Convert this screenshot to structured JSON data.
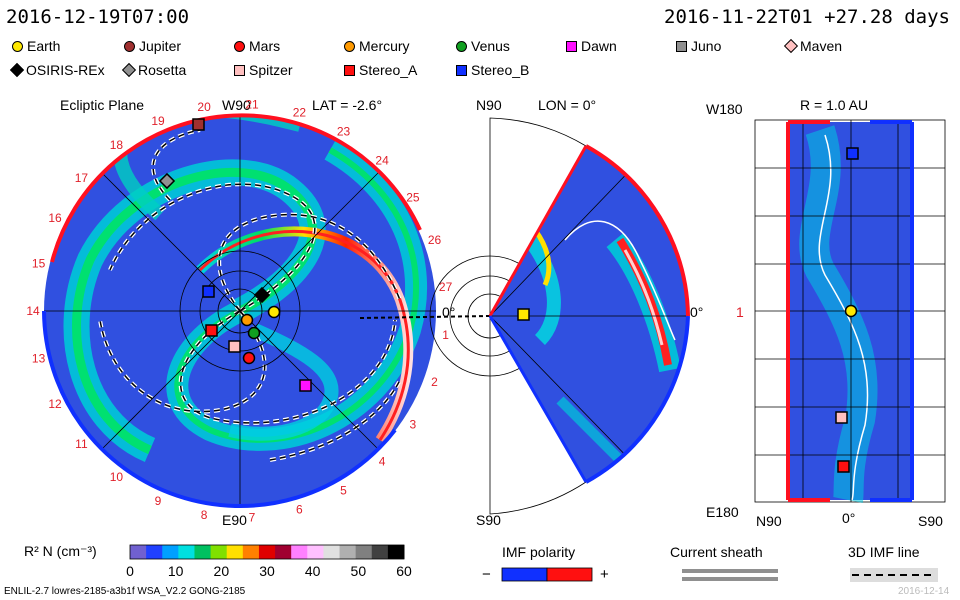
{
  "header": {
    "left_time": "2016-12-19T07:00",
    "right_time": "2016-11-22T01 +27.28 days"
  },
  "legend": [
    {
      "name": "Earth",
      "shape": "circle",
      "color": "#ffe800"
    },
    {
      "name": "Jupiter",
      "shape": "circle",
      "color": "#a03030"
    },
    {
      "name": "Mars",
      "shape": "circle",
      "color": "#ff1010"
    },
    {
      "name": "Mercury",
      "shape": "circle",
      "color": "#ff9a00"
    },
    {
      "name": "Venus",
      "shape": "circle",
      "color": "#10a020"
    },
    {
      "name": "Dawn",
      "shape": "square",
      "color": "#ff10ff"
    },
    {
      "name": "Juno",
      "shape": "square",
      "color": "#909090"
    },
    {
      "name": "Maven",
      "shape": "diamond",
      "color": "#ffc0c0"
    },
    {
      "name": "OSIRIS-REx",
      "shape": "diamond",
      "color": "#000000"
    },
    {
      "name": "Rosetta",
      "shape": "diamond",
      "color": "#909090"
    },
    {
      "name": "Spitzer",
      "shape": "square",
      "color": "#ffc0c0"
    },
    {
      "name": "Stereo_A",
      "shape": "square",
      "color": "#ff1010"
    },
    {
      "name": "Stereo_B",
      "shape": "square",
      "color": "#1030ff"
    }
  ],
  "ecliptic": {
    "title": "Ecliptic Plane",
    "top_label": "W90",
    "bottom_label": "E90",
    "lat_label": "LAT = -2.6°",
    "sector_numbers": [
      "20",
      "21",
      "22",
      "23",
      "24",
      "25",
      "26",
      "27",
      "1",
      "2",
      "3",
      "4",
      "5",
      "6",
      "7",
      "8",
      "9",
      "10",
      "11",
      "12",
      "13",
      "14",
      "15",
      "16",
      "17",
      "18",
      "19"
    ]
  },
  "meridional": {
    "title": "LON = 0°",
    "top_label": "N90",
    "bottom_label": "S90",
    "zero_left": "0°",
    "zero_right": "0°"
  },
  "radial": {
    "title": "R = 1.0 AU",
    "top_label": "W180",
    "bottom_label": "E180",
    "mid_label": "1",
    "x_left": "N90",
    "x_mid": "0°",
    "x_right": "S90"
  },
  "colorbar": {
    "label": "R² N (cm⁻³)",
    "ticks": [
      "0",
      "10",
      "20",
      "30",
      "40",
      "50",
      "60"
    ],
    "colors": [
      "#7060d0",
      "#2040ff",
      "#00a0ff",
      "#00e0e0",
      "#00c060",
      "#80e000",
      "#ffe000",
      "#ff8000",
      "#e00000",
      "#a00030",
      "#ff80ff",
      "#ffc0ff",
      "#e0e0e0",
      "#b0b0b0",
      "#808080",
      "#404040",
      "#000000"
    ]
  },
  "imf_polarity": {
    "label": "IMF polarity",
    "minus": "−",
    "plus": "+"
  },
  "current_sheath": {
    "label": "Current sheath"
  },
  "imf_line": {
    "label": "3D IMF line"
  },
  "footer": {
    "left": "ENLIL-2.7 lowres-2185-a3b1f WSA_V2.2 GONG-2185",
    "right": "2016-12-14"
  }
}
